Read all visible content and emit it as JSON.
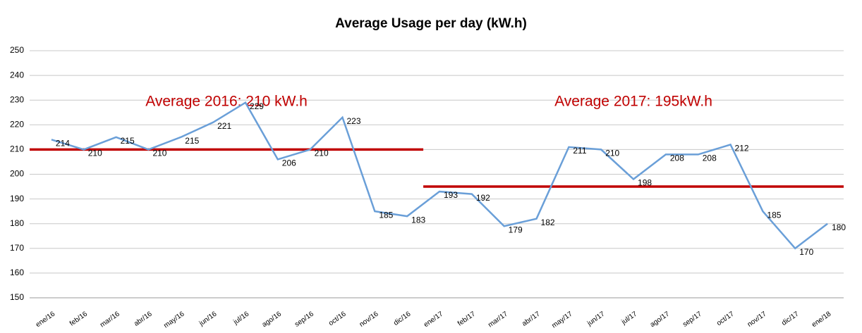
{
  "chart_data": {
    "type": "line",
    "title": "Average Usage per day (kW.h)",
    "categories": [
      "ene/16",
      "feb/16",
      "mar/16",
      "abr/16",
      "may/16",
      "jun/16",
      "jul/16",
      "ago/16",
      "sep/16",
      "oct/16",
      "nov/16",
      "dic/16",
      "ene/17",
      "feb/17",
      "mar/17",
      "abr/17",
      "may/17",
      "jun/17",
      "jul/17",
      "ago/17",
      "sep/17",
      "oct/17",
      "nov/17",
      "dic/17",
      "ene/18"
    ],
    "series": [
      {
        "name": "Average Usage per day",
        "color": "#6a9fd8",
        "values": [
          214,
          210,
          215,
          210,
          215,
          221,
          229,
          206,
          210,
          223,
          185,
          183,
          193,
          192,
          179,
          182,
          211,
          210,
          198,
          208,
          208,
          212,
          185,
          170,
          180
        ]
      }
    ],
    "ylim": [
      150,
      250
    ],
    "yticks": [
      150,
      160,
      170,
      180,
      190,
      200,
      210,
      220,
      230,
      240,
      250
    ],
    "grid": true,
    "annotations": [
      {
        "text": "Average 2016: 210 kW.h",
        "value": 210,
        "from": "ene/16",
        "to": "dic/16",
        "color": "#c00000"
      },
      {
        "text": "Average 2017: 195kW.h",
        "value": 195,
        "from": "ene/17",
        "to": "ene/18",
        "color": "#c00000"
      }
    ]
  }
}
